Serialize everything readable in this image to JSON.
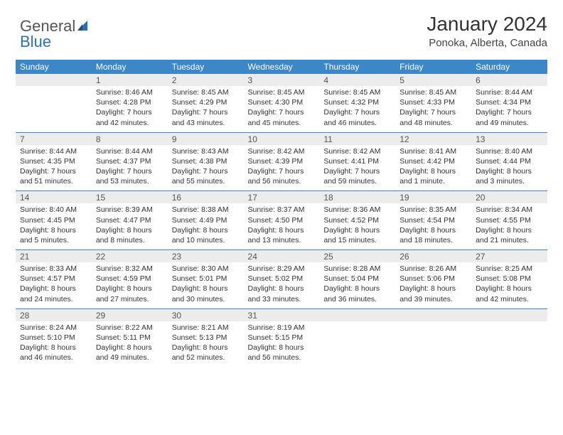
{
  "logo": {
    "part1": "General",
    "part2": "Blue"
  },
  "title": "January 2024",
  "location": "Ponoka, Alberta, Canada",
  "day_headers": [
    "Sunday",
    "Monday",
    "Tuesday",
    "Wednesday",
    "Thursday",
    "Friday",
    "Saturday"
  ],
  "colors": {
    "header_bg": "#3b87c8",
    "header_text": "#ffffff",
    "daynum_bg": "#ececec",
    "rule": "#3b87c8",
    "body_text": "#333333",
    "logo_accent": "#2f6fb0"
  },
  "weeks": [
    {
      "nums": [
        "",
        "1",
        "2",
        "3",
        "4",
        "5",
        "6"
      ],
      "cells": [
        null,
        {
          "sunrise": "Sunrise: 8:46 AM",
          "sunset": "Sunset: 4:28 PM",
          "day1": "Daylight: 7 hours",
          "day2": "and 42 minutes."
        },
        {
          "sunrise": "Sunrise: 8:45 AM",
          "sunset": "Sunset: 4:29 PM",
          "day1": "Daylight: 7 hours",
          "day2": "and 43 minutes."
        },
        {
          "sunrise": "Sunrise: 8:45 AM",
          "sunset": "Sunset: 4:30 PM",
          "day1": "Daylight: 7 hours",
          "day2": "and 45 minutes."
        },
        {
          "sunrise": "Sunrise: 8:45 AM",
          "sunset": "Sunset: 4:32 PM",
          "day1": "Daylight: 7 hours",
          "day2": "and 46 minutes."
        },
        {
          "sunrise": "Sunrise: 8:45 AM",
          "sunset": "Sunset: 4:33 PM",
          "day1": "Daylight: 7 hours",
          "day2": "and 48 minutes."
        },
        {
          "sunrise": "Sunrise: 8:44 AM",
          "sunset": "Sunset: 4:34 PM",
          "day1": "Daylight: 7 hours",
          "day2": "and 49 minutes."
        }
      ]
    },
    {
      "nums": [
        "7",
        "8",
        "9",
        "10",
        "11",
        "12",
        "13"
      ],
      "cells": [
        {
          "sunrise": "Sunrise: 8:44 AM",
          "sunset": "Sunset: 4:35 PM",
          "day1": "Daylight: 7 hours",
          "day2": "and 51 minutes."
        },
        {
          "sunrise": "Sunrise: 8:44 AM",
          "sunset": "Sunset: 4:37 PM",
          "day1": "Daylight: 7 hours",
          "day2": "and 53 minutes."
        },
        {
          "sunrise": "Sunrise: 8:43 AM",
          "sunset": "Sunset: 4:38 PM",
          "day1": "Daylight: 7 hours",
          "day2": "and 55 minutes."
        },
        {
          "sunrise": "Sunrise: 8:42 AM",
          "sunset": "Sunset: 4:39 PM",
          "day1": "Daylight: 7 hours",
          "day2": "and 56 minutes."
        },
        {
          "sunrise": "Sunrise: 8:42 AM",
          "sunset": "Sunset: 4:41 PM",
          "day1": "Daylight: 7 hours",
          "day2": "and 59 minutes."
        },
        {
          "sunrise": "Sunrise: 8:41 AM",
          "sunset": "Sunset: 4:42 PM",
          "day1": "Daylight: 8 hours",
          "day2": "and 1 minute."
        },
        {
          "sunrise": "Sunrise: 8:40 AM",
          "sunset": "Sunset: 4:44 PM",
          "day1": "Daylight: 8 hours",
          "day2": "and 3 minutes."
        }
      ]
    },
    {
      "nums": [
        "14",
        "15",
        "16",
        "17",
        "18",
        "19",
        "20"
      ],
      "cells": [
        {
          "sunrise": "Sunrise: 8:40 AM",
          "sunset": "Sunset: 4:45 PM",
          "day1": "Daylight: 8 hours",
          "day2": "and 5 minutes."
        },
        {
          "sunrise": "Sunrise: 8:39 AM",
          "sunset": "Sunset: 4:47 PM",
          "day1": "Daylight: 8 hours",
          "day2": "and 8 minutes."
        },
        {
          "sunrise": "Sunrise: 8:38 AM",
          "sunset": "Sunset: 4:49 PM",
          "day1": "Daylight: 8 hours",
          "day2": "and 10 minutes."
        },
        {
          "sunrise": "Sunrise: 8:37 AM",
          "sunset": "Sunset: 4:50 PM",
          "day1": "Daylight: 8 hours",
          "day2": "and 13 minutes."
        },
        {
          "sunrise": "Sunrise: 8:36 AM",
          "sunset": "Sunset: 4:52 PM",
          "day1": "Daylight: 8 hours",
          "day2": "and 15 minutes."
        },
        {
          "sunrise": "Sunrise: 8:35 AM",
          "sunset": "Sunset: 4:54 PM",
          "day1": "Daylight: 8 hours",
          "day2": "and 18 minutes."
        },
        {
          "sunrise": "Sunrise: 8:34 AM",
          "sunset": "Sunset: 4:55 PM",
          "day1": "Daylight: 8 hours",
          "day2": "and 21 minutes."
        }
      ]
    },
    {
      "nums": [
        "21",
        "22",
        "23",
        "24",
        "25",
        "26",
        "27"
      ],
      "cells": [
        {
          "sunrise": "Sunrise: 8:33 AM",
          "sunset": "Sunset: 4:57 PM",
          "day1": "Daylight: 8 hours",
          "day2": "and 24 minutes."
        },
        {
          "sunrise": "Sunrise: 8:32 AM",
          "sunset": "Sunset: 4:59 PM",
          "day1": "Daylight: 8 hours",
          "day2": "and 27 minutes."
        },
        {
          "sunrise": "Sunrise: 8:30 AM",
          "sunset": "Sunset: 5:01 PM",
          "day1": "Daylight: 8 hours",
          "day2": "and 30 minutes."
        },
        {
          "sunrise": "Sunrise: 8:29 AM",
          "sunset": "Sunset: 5:02 PM",
          "day1": "Daylight: 8 hours",
          "day2": "and 33 minutes."
        },
        {
          "sunrise": "Sunrise: 8:28 AM",
          "sunset": "Sunset: 5:04 PM",
          "day1": "Daylight: 8 hours",
          "day2": "and 36 minutes."
        },
        {
          "sunrise": "Sunrise: 8:26 AM",
          "sunset": "Sunset: 5:06 PM",
          "day1": "Daylight: 8 hours",
          "day2": "and 39 minutes."
        },
        {
          "sunrise": "Sunrise: 8:25 AM",
          "sunset": "Sunset: 5:08 PM",
          "day1": "Daylight: 8 hours",
          "day2": "and 42 minutes."
        }
      ]
    },
    {
      "nums": [
        "28",
        "29",
        "30",
        "31",
        "",
        "",
        ""
      ],
      "cells": [
        {
          "sunrise": "Sunrise: 8:24 AM",
          "sunset": "Sunset: 5:10 PM",
          "day1": "Daylight: 8 hours",
          "day2": "and 46 minutes."
        },
        {
          "sunrise": "Sunrise: 8:22 AM",
          "sunset": "Sunset: 5:11 PM",
          "day1": "Daylight: 8 hours",
          "day2": "and 49 minutes."
        },
        {
          "sunrise": "Sunrise: 8:21 AM",
          "sunset": "Sunset: 5:13 PM",
          "day1": "Daylight: 8 hours",
          "day2": "and 52 minutes."
        },
        {
          "sunrise": "Sunrise: 8:19 AM",
          "sunset": "Sunset: 5:15 PM",
          "day1": "Daylight: 8 hours",
          "day2": "and 56 minutes."
        },
        null,
        null,
        null
      ]
    }
  ]
}
